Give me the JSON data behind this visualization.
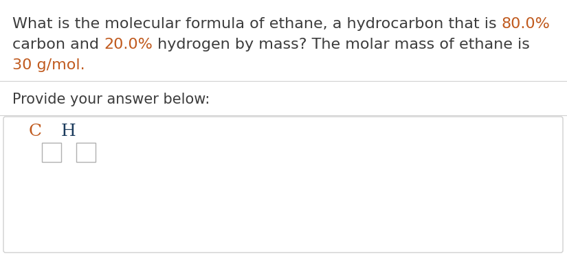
{
  "background_color": "#ffffff",
  "text_color": "#3c3c3c",
  "highlight_color_orange": "#c05a1e",
  "highlight_color_blue": "#1a3a5c",
  "divider_color": "#d0d0d0",
  "box_border_color": "#b0b0b0",
  "answer_border_color": "#d0d0d0",
  "font_size_question": 16,
  "font_size_provide": 15,
  "font_size_CH": 18,
  "fig_width": 8.25,
  "fig_height": 3.73,
  "line1_normal": "What is the molecular formula of ethane, a hydrocarbon that is ",
  "line1_bold": "80.0%",
  "line2_normal_a": "carbon and ",
  "line2_bold": "20.0%",
  "line2_normal_b": " hydrogen by mass? The molar mass of ethane is",
  "line3_bold": "30 g/mol.",
  "provide_text": "Provide your answer below:",
  "C_label": "C",
  "H_label": "H"
}
